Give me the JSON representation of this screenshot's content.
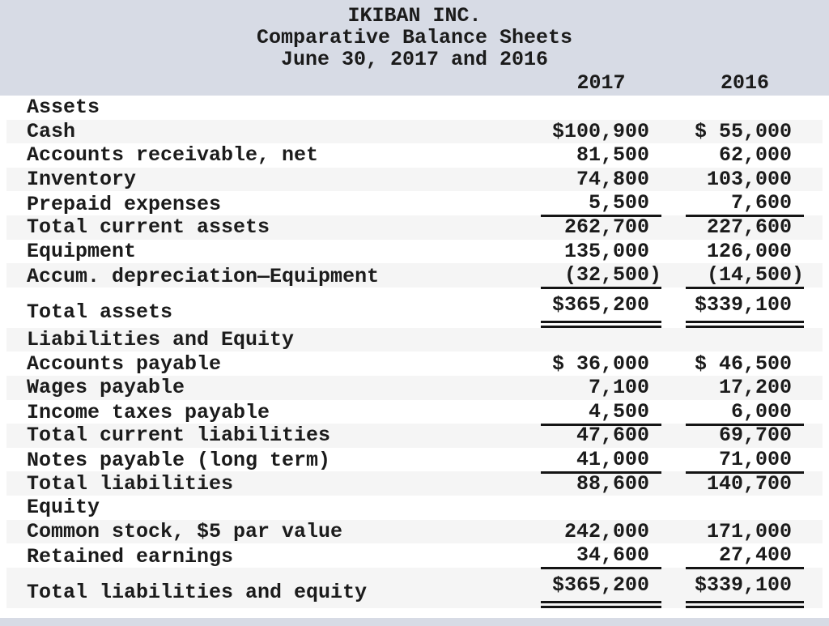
{
  "header": {
    "company": "IKIBAN INC.",
    "subtitle": "Comparative Balance Sheets",
    "period": "June 30, 2017 and 2016",
    "columns": [
      "2017",
      "2016"
    ]
  },
  "colors": {
    "header_bg": "#d7dbe5",
    "stripe_bg": "#f5f5f5",
    "text": "#1b1b1b",
    "rule": "#141414"
  },
  "rows": [
    {
      "label": "Assets",
      "type": "section",
      "v2017": "",
      "v2016": ""
    },
    {
      "label": "Cash",
      "v2017": "$100,900",
      "v2016": "$ 55,000"
    },
    {
      "label": "Accounts receivable, net",
      "v2017": "81,500",
      "v2016": "62,000"
    },
    {
      "label": "Inventory",
      "v2017": "74,800",
      "v2016": "103,000"
    },
    {
      "label": "Prepaid expenses",
      "v2017": "5,500",
      "v2016": "7,600",
      "rule": "single"
    },
    {
      "label": "Total current assets",
      "v2017": "262,700",
      "v2016": "227,600"
    },
    {
      "label": "Equipment",
      "v2017": "135,000",
      "v2016": "126,000"
    },
    {
      "label": "Accum. depreciation—Equipment",
      "v2017": "(32,500)",
      "v2016": "(14,500)",
      "rule": "single"
    },
    {
      "label": "Total assets",
      "v2017": "$365,200",
      "v2016": "$339,100",
      "rule": "double",
      "emphasis": "total"
    },
    {
      "label": "Liabilities and Equity",
      "type": "section",
      "v2017": "",
      "v2016": ""
    },
    {
      "label": "Accounts payable",
      "v2017": "$ 36,000",
      "v2016": "$ 46,500"
    },
    {
      "label": "Wages payable",
      "v2017": "7,100",
      "v2016": "17,200"
    },
    {
      "label": "Income taxes payable",
      "v2017": "4,500",
      "v2016": "6,000",
      "rule": "single"
    },
    {
      "label": "Total current liabilities",
      "v2017": "47,600",
      "v2016": "69,700"
    },
    {
      "label": "Notes payable (long term)",
      "v2017": "41,000",
      "v2016": "71,000",
      "rule": "single"
    },
    {
      "label": "Total liabilities",
      "v2017": "88,600",
      "v2016": "140,700"
    },
    {
      "label": "Equity",
      "type": "section",
      "v2017": "",
      "v2016": ""
    },
    {
      "label": "Common stock, $5 par value",
      "v2017": "242,000",
      "v2016": "171,000"
    },
    {
      "label": "Retained earnings",
      "v2017": "34,600",
      "v2016": "27,400",
      "rule": "single"
    },
    {
      "label": "Total liabilities and equity",
      "v2017": "$365,200",
      "v2016": "$339,100",
      "rule": "double",
      "emphasis": "total"
    }
  ]
}
